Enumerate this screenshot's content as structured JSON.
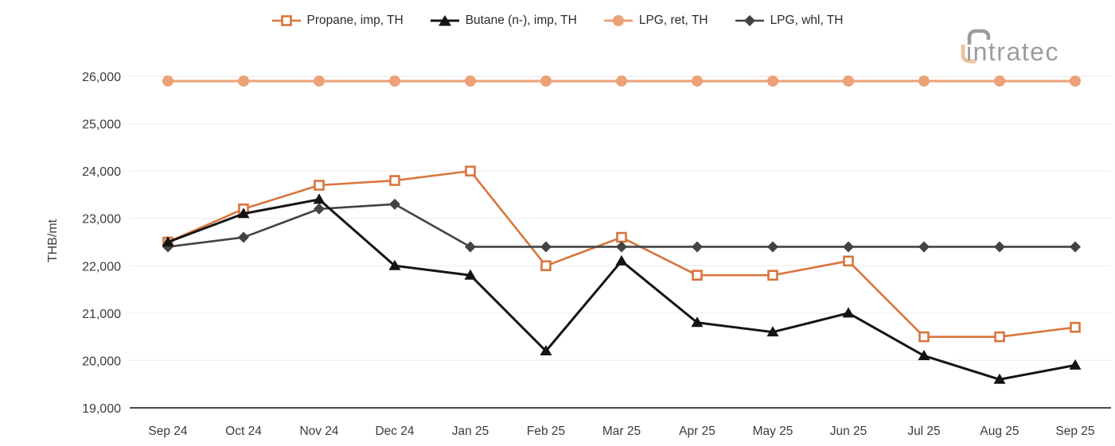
{
  "logo": {
    "text": "intratec"
  },
  "chart_data": {
    "type": "line",
    "title": "",
    "ylabel": "THB/mt",
    "xlabel": "",
    "categories": [
      "Sep 24",
      "Oct 24",
      "Nov 24",
      "Dec 24",
      "Jan 25",
      "Feb 25",
      "Mar 25",
      "Apr 25",
      "May 25",
      "Jun 25",
      "Jul 25",
      "Aug 25",
      "Sep 25"
    ],
    "yticks": [
      19000,
      20000,
      21000,
      22000,
      23000,
      24000,
      25000,
      26000
    ],
    "ylim": [
      19000,
      26500
    ],
    "grid": "horizontal-light",
    "legend_position": "top-center",
    "y_tick_format": "comma",
    "series": [
      {
        "name": "Propane, imp, TH",
        "color": "#D9753C",
        "marker": "square-open",
        "line_width": 2.6,
        "values": [
          22500,
          23200,
          23700,
          23800,
          24000,
          22000,
          22600,
          21800,
          21800,
          22100,
          20500,
          20500,
          20700
        ]
      },
      {
        "name": "Butane (n-), imp, TH",
        "color": "#141414",
        "marker": "triangle",
        "line_width": 3,
        "values": [
          22500,
          23100,
          23400,
          22000,
          21800,
          20200,
          22100,
          20800,
          20600,
          21000,
          20100,
          19600,
          19900
        ]
      },
      {
        "name": "LPG, ret, TH",
        "color": "#ECA176",
        "marker": "circle",
        "line_width": 3,
        "values": [
          25900,
          25900,
          25900,
          25900,
          25900,
          25900,
          25900,
          25900,
          25900,
          25900,
          25900,
          25900,
          25900
        ]
      },
      {
        "name": "LPG, whl, TH",
        "color": "#434343",
        "marker": "diamond",
        "line_width": 2.6,
        "values": [
          22400,
          22600,
          23200,
          23300,
          22400,
          22400,
          22400,
          22400,
          22400,
          22400,
          22400,
          22400,
          22400
        ]
      }
    ]
  }
}
